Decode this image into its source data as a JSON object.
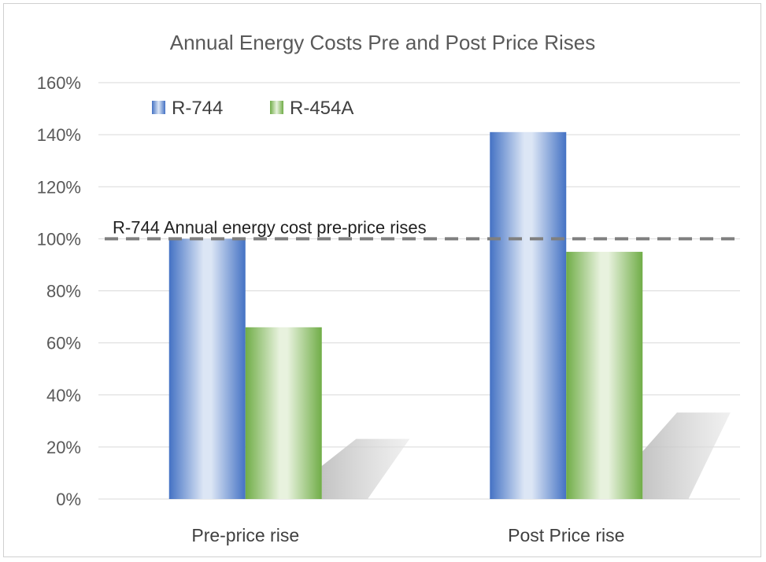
{
  "chart_data": {
    "type": "bar",
    "title": "Annual Energy Costs Pre and Post Price Rises",
    "categories": [
      "Pre-price rise",
      "Post Price rise"
    ],
    "series": [
      {
        "name": "R-744",
        "values": [
          100,
          141
        ],
        "color": "#4472c4"
      },
      {
        "name": "R-454A",
        "values": [
          66,
          95
        ],
        "color": "#70ad47"
      }
    ],
    "ylim": [
      0,
      160
    ],
    "yticks": [
      0,
      20,
      40,
      60,
      80,
      100,
      120,
      140,
      160
    ],
    "ytick_labels": [
      "0%",
      "20%",
      "40%",
      "60%",
      "80%",
      "100%",
      "120%",
      "140%",
      "160%"
    ],
    "grid": true,
    "legend_position": "top-left",
    "reference_line": {
      "value": 100,
      "label": "R-744 Annual energy cost pre-price rises",
      "style": "dashed",
      "color": "#7f7f7f"
    }
  }
}
